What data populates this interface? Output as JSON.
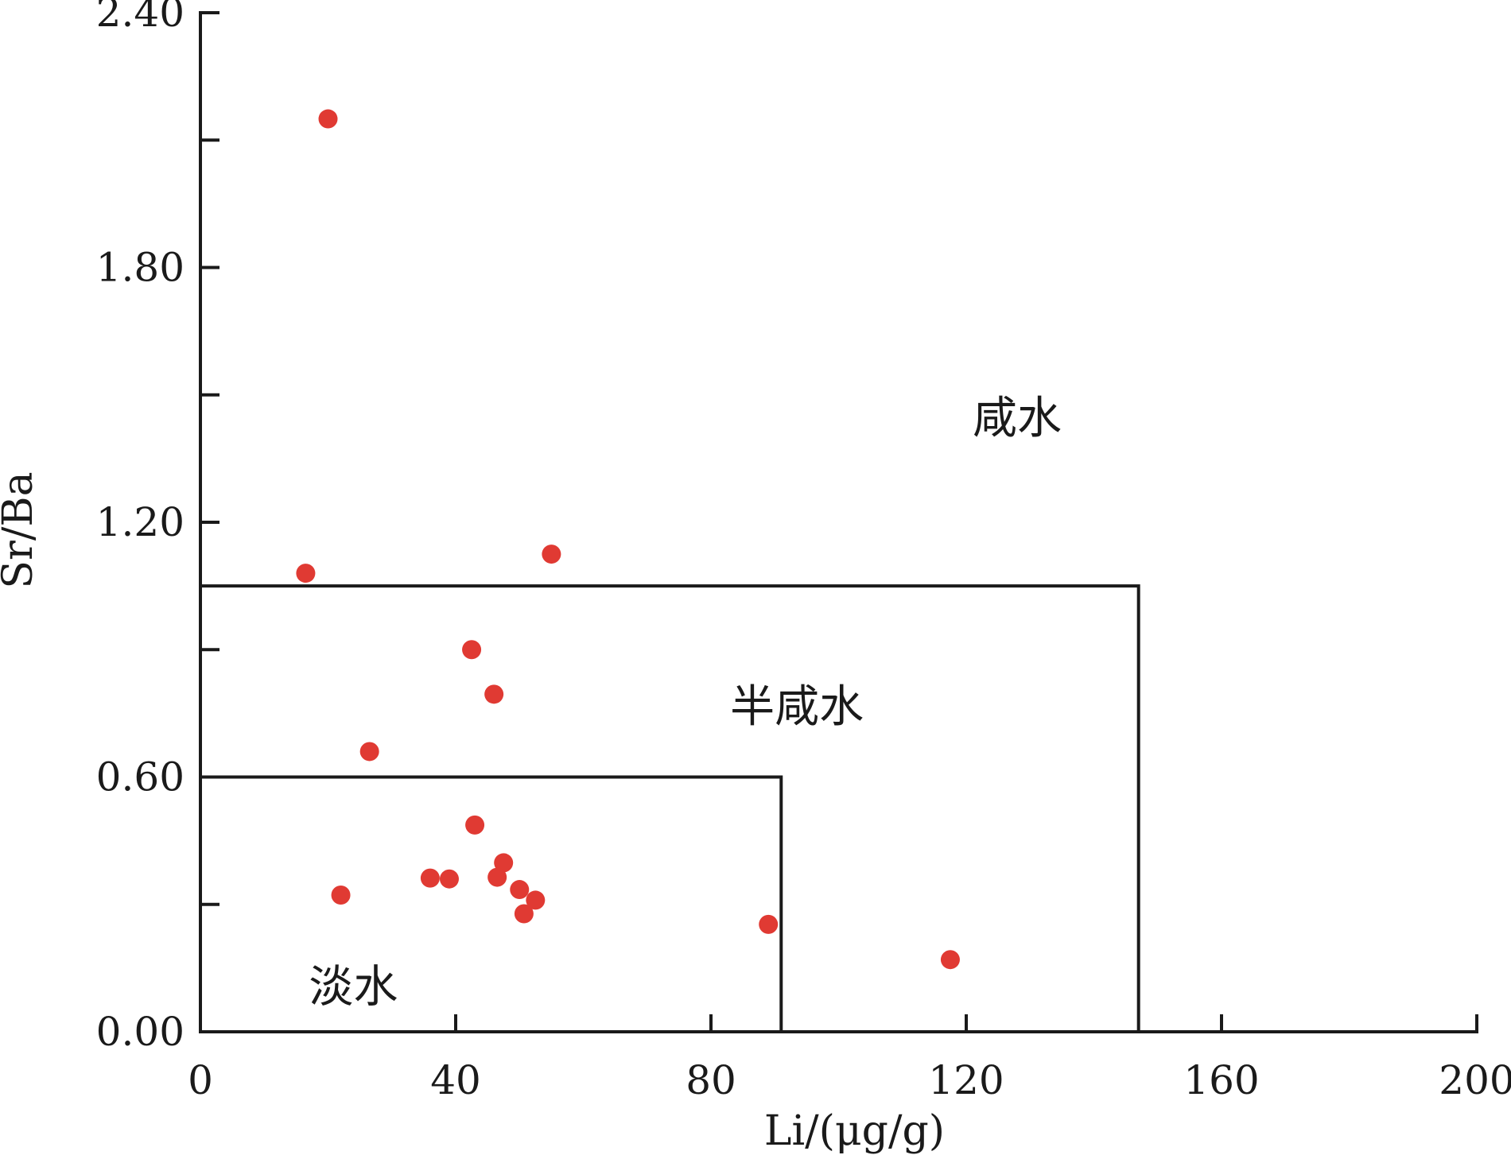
{
  "chart_data": {
    "type": "scatter",
    "title": "",
    "xlabel": "Li/(μg/g)",
    "ylabel": "Sr/Ba",
    "xlim": [
      0,
      200
    ],
    "ylim": [
      0,
      2.4
    ],
    "x_ticks": [
      0,
      40,
      80,
      120,
      160,
      200
    ],
    "x_tick_labels": [
      "0",
      "40",
      "80",
      "120",
      "160",
      "200"
    ],
    "y_major_ticks": [
      0,
      0.6,
      1.2,
      1.8,
      2.4
    ],
    "y_tick_labels": [
      "0.00",
      "0.60",
      "1.20",
      "1.80",
      "2.40"
    ],
    "y_minor_ticks": [
      0.3,
      0.9,
      1.5,
      2.1
    ],
    "grid": false,
    "legend": "none",
    "marker_color": "#e03a33",
    "series": [
      {
        "name": "",
        "points": [
          {
            "x": 20.0,
            "y": 2.15
          },
          {
            "x": 16.5,
            "y": 1.08
          },
          {
            "x": 55.0,
            "y": 1.125
          },
          {
            "x": 42.5,
            "y": 0.9
          },
          {
            "x": 46.0,
            "y": 0.795
          },
          {
            "x": 26.5,
            "y": 0.66
          },
          {
            "x": 43.0,
            "y": 0.487
          },
          {
            "x": 47.5,
            "y": 0.398
          },
          {
            "x": 36.0,
            "y": 0.362
          },
          {
            "x": 39.0,
            "y": 0.36
          },
          {
            "x": 46.5,
            "y": 0.364
          },
          {
            "x": 50.0,
            "y": 0.335
          },
          {
            "x": 52.5,
            "y": 0.31
          },
          {
            "x": 50.7,
            "y": 0.278
          },
          {
            "x": 22.0,
            "y": 0.322
          },
          {
            "x": 89.0,
            "y": 0.253
          },
          {
            "x": 117.5,
            "y": 0.17
          }
        ]
      }
    ],
    "regions": [
      {
        "label": "淡水",
        "x_max": 91,
        "y_max": 0.6,
        "label_x": 17,
        "label_y": 0.07
      },
      {
        "label": "半咸水",
        "x_max": 147,
        "y_max": 1.05,
        "label_x": 83,
        "label_y": 0.73
      },
      {
        "label": "咸水",
        "label_x": 121,
        "label_y": 1.41
      }
    ]
  }
}
